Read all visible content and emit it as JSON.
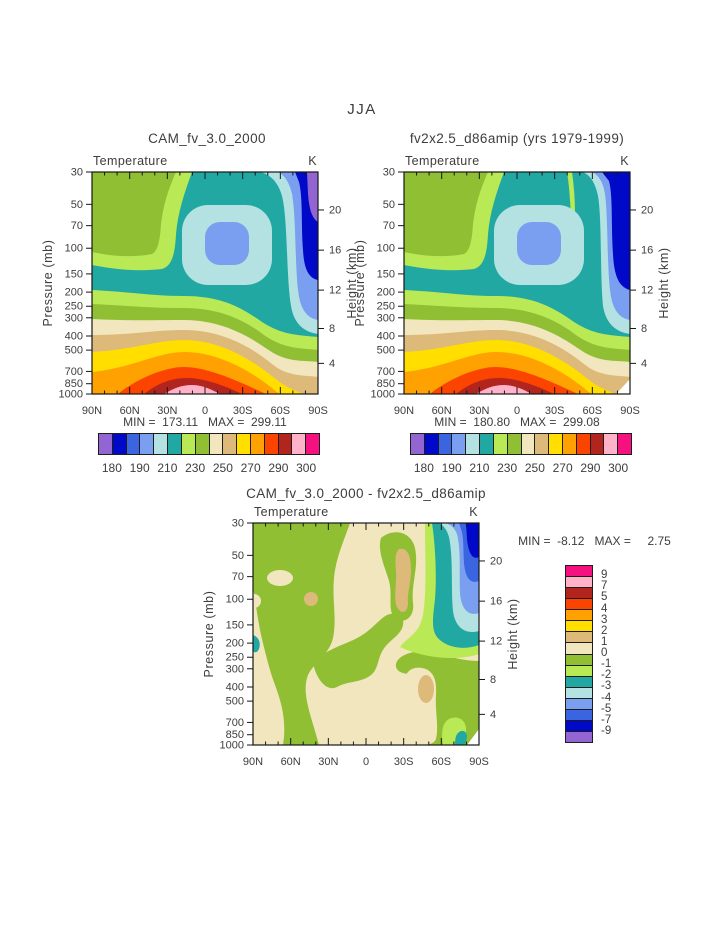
{
  "page": {
    "title": "JJA"
  },
  "panels": [
    {
      "title": "CAM_fv_3.0_2000",
      "field": "Temperature",
      "units": "K",
      "stats": "MIN =  173.11   MAX =  299.11"
    },
    {
      "title": "fv2x2.5_d86amip (yrs 1979-1999)",
      "field": "Temperature",
      "units": "K",
      "stats": "MIN =  180.80   MAX =  299.08"
    },
    {
      "title": "CAM_fv_3.0_2000 - fv2x2.5_d86amip",
      "field": "Temperature",
      "units": "K",
      "stats": "MIN =  -8.12   MAX =     2.75"
    }
  ],
  "axes": {
    "pressure_label": "Pressure (mb)",
    "height_label": "Height (km)",
    "pressure_ticks": [
      "30",
      "50",
      "70",
      "100",
      "150",
      "200",
      "250",
      "300",
      "400",
      "500",
      "700",
      "850",
      "1000"
    ],
    "height_ticks": [
      "20",
      "16",
      "12",
      "8",
      "4"
    ],
    "lat_ticks": [
      "90N",
      "60N",
      "30N",
      "0",
      "30S",
      "60S",
      "90S"
    ]
  },
  "colorbar_temperature": {
    "labels": [
      "180",
      "190",
      "210",
      "230",
      "250",
      "270",
      "290",
      "300"
    ],
    "colors": [
      "#9265D2",
      "#0009C8",
      "#3B64E0",
      "#7B9FF0",
      "#B4E1E2",
      "#21A8A2",
      "#B9E954",
      "#90BF33",
      "#F2E6BE",
      "#DDB97A",
      "#FFDE00",
      "#FFA100",
      "#FB4400",
      "#B2251F",
      "#FFB2C8",
      "#F5117F"
    ]
  },
  "colorbar_difference": {
    "labels": [
      "9",
      "7",
      "5",
      "4",
      "3",
      "2",
      "1",
      "0",
      "-1",
      "-2",
      "-3",
      "-4",
      "-5",
      "-7",
      "-9"
    ],
    "colors_top_to_bottom": [
      "#F5117F",
      "#FFB2C8",
      "#B2251F",
      "#FB4400",
      "#FFA100",
      "#FFDE00",
      "#DDB97A",
      "#F2E6BE",
      "#90BF33",
      "#B9E954",
      "#21A8A2",
      "#B4E1E2",
      "#7B9FF0",
      "#3B64E0",
      "#0009C8",
      "#9265D2"
    ]
  },
  "chart_data": [
    {
      "type": "heatmap",
      "subtype": "latitude-pressure contour cross-section",
      "season": "JJA",
      "title": "CAM_fv_3.0_2000",
      "variable": "Temperature",
      "units": "K",
      "x_ticks": [
        "90N",
        "60N",
        "30N",
        "0",
        "30S",
        "60S",
        "90S"
      ],
      "y_left_label": "Pressure (mb)",
      "y_left_scale": "log",
      "y_left_ticks": [
        30,
        50,
        70,
        100,
        150,
        200,
        250,
        300,
        400,
        500,
        700,
        850,
        1000
      ],
      "y_right_label": "Height (km)",
      "y_right_ticks": [
        20,
        16,
        12,
        8,
        4
      ],
      "min": 173.11,
      "max": 299.11,
      "colorbar_labels": [
        180,
        190,
        210,
        230,
        250,
        270,
        290,
        300
      ],
      "palette": [
        "#9265D2",
        "#0009C8",
        "#3B64E0",
        "#7B9FF0",
        "#B4E1E2",
        "#21A8A2",
        "#B9E954",
        "#90BF33",
        "#F2E6BE",
        "#DDB97A",
        "#FFDE00",
        "#FFA100",
        "#FB4400",
        "#B2251F",
        "#FFB2C8",
        "#F5117F"
      ],
      "features": "cold tropical tropopause minimum near 70-100mb (blue oval), cold winter pole at upper right (dark blue/purple), warm surface maximum near 15N (pink/red at 1000mb)"
    },
    {
      "type": "heatmap",
      "subtype": "latitude-pressure contour cross-section",
      "season": "JJA",
      "title": "fv2x2.5_d86amip (yrs 1979-1999)",
      "variable": "Temperature",
      "units": "K",
      "x_ticks": [
        "90N",
        "60N",
        "30N",
        "0",
        "30S",
        "60S",
        "90S"
      ],
      "y_left_label": "Pressure (mb)",
      "y_left_scale": "log",
      "y_left_ticks": [
        30,
        50,
        70,
        100,
        150,
        200,
        250,
        300,
        400,
        500,
        700,
        850,
        1000
      ],
      "y_right_label": "Height (km)",
      "y_right_ticks": [
        20,
        16,
        12,
        8,
        4
      ],
      "min": 180.8,
      "max": 299.08,
      "colorbar_labels": [
        180,
        190,
        210,
        230,
        250,
        270,
        290,
        300
      ],
      "palette": [
        "#9265D2",
        "#0009C8",
        "#3B64E0",
        "#7B9FF0",
        "#B4E1E2",
        "#21A8A2",
        "#B9E954",
        "#90BF33",
        "#F2E6BE",
        "#DDB97A",
        "#FFDE00",
        "#FFA100",
        "#FB4400",
        "#B2251F",
        "#FFB2C8",
        "#F5117F"
      ]
    },
    {
      "type": "heatmap",
      "subtype": "latitude-pressure difference cross-section",
      "season": "JJA",
      "title": "CAM_fv_3.0_2000 - fv2x2.5_d86amip",
      "variable": "Temperature difference",
      "units": "K",
      "x_ticks": [
        "90N",
        "60N",
        "30N",
        "0",
        "30S",
        "60S",
        "90S"
      ],
      "y_left_label": "Pressure (mb)",
      "y_left_scale": "log",
      "y_left_ticks": [
        30,
        50,
        70,
        100,
        150,
        200,
        250,
        300,
        400,
        500,
        700,
        850,
        1000
      ],
      "y_right_label": "Height (km)",
      "y_right_ticks": [
        20,
        16,
        12,
        8,
        4
      ],
      "min": -8.12,
      "max": 2.75,
      "colorbar_labels": [
        9,
        7,
        5,
        4,
        3,
        2,
        1,
        0,
        -1,
        -2,
        -3,
        -4,
        -5,
        -7,
        -9
      ],
      "palette_top_to_bottom": [
        "#F5117F",
        "#FFB2C8",
        "#B2251F",
        "#FB4400",
        "#FFA100",
        "#FFDE00",
        "#DDB97A",
        "#F2E6BE",
        "#90BF33",
        "#B9E954",
        "#21A8A2",
        "#B4E1E2",
        "#7B9FF0",
        "#3B64E0",
        "#0009C8",
        "#9265D2"
      ],
      "features": "mostly 0 to +1 (beige) and -1 to 0 (green); strong negative differences up to -8 at upper right near south pole (blue stack); small +1 to +2 tan patches"
    }
  ]
}
